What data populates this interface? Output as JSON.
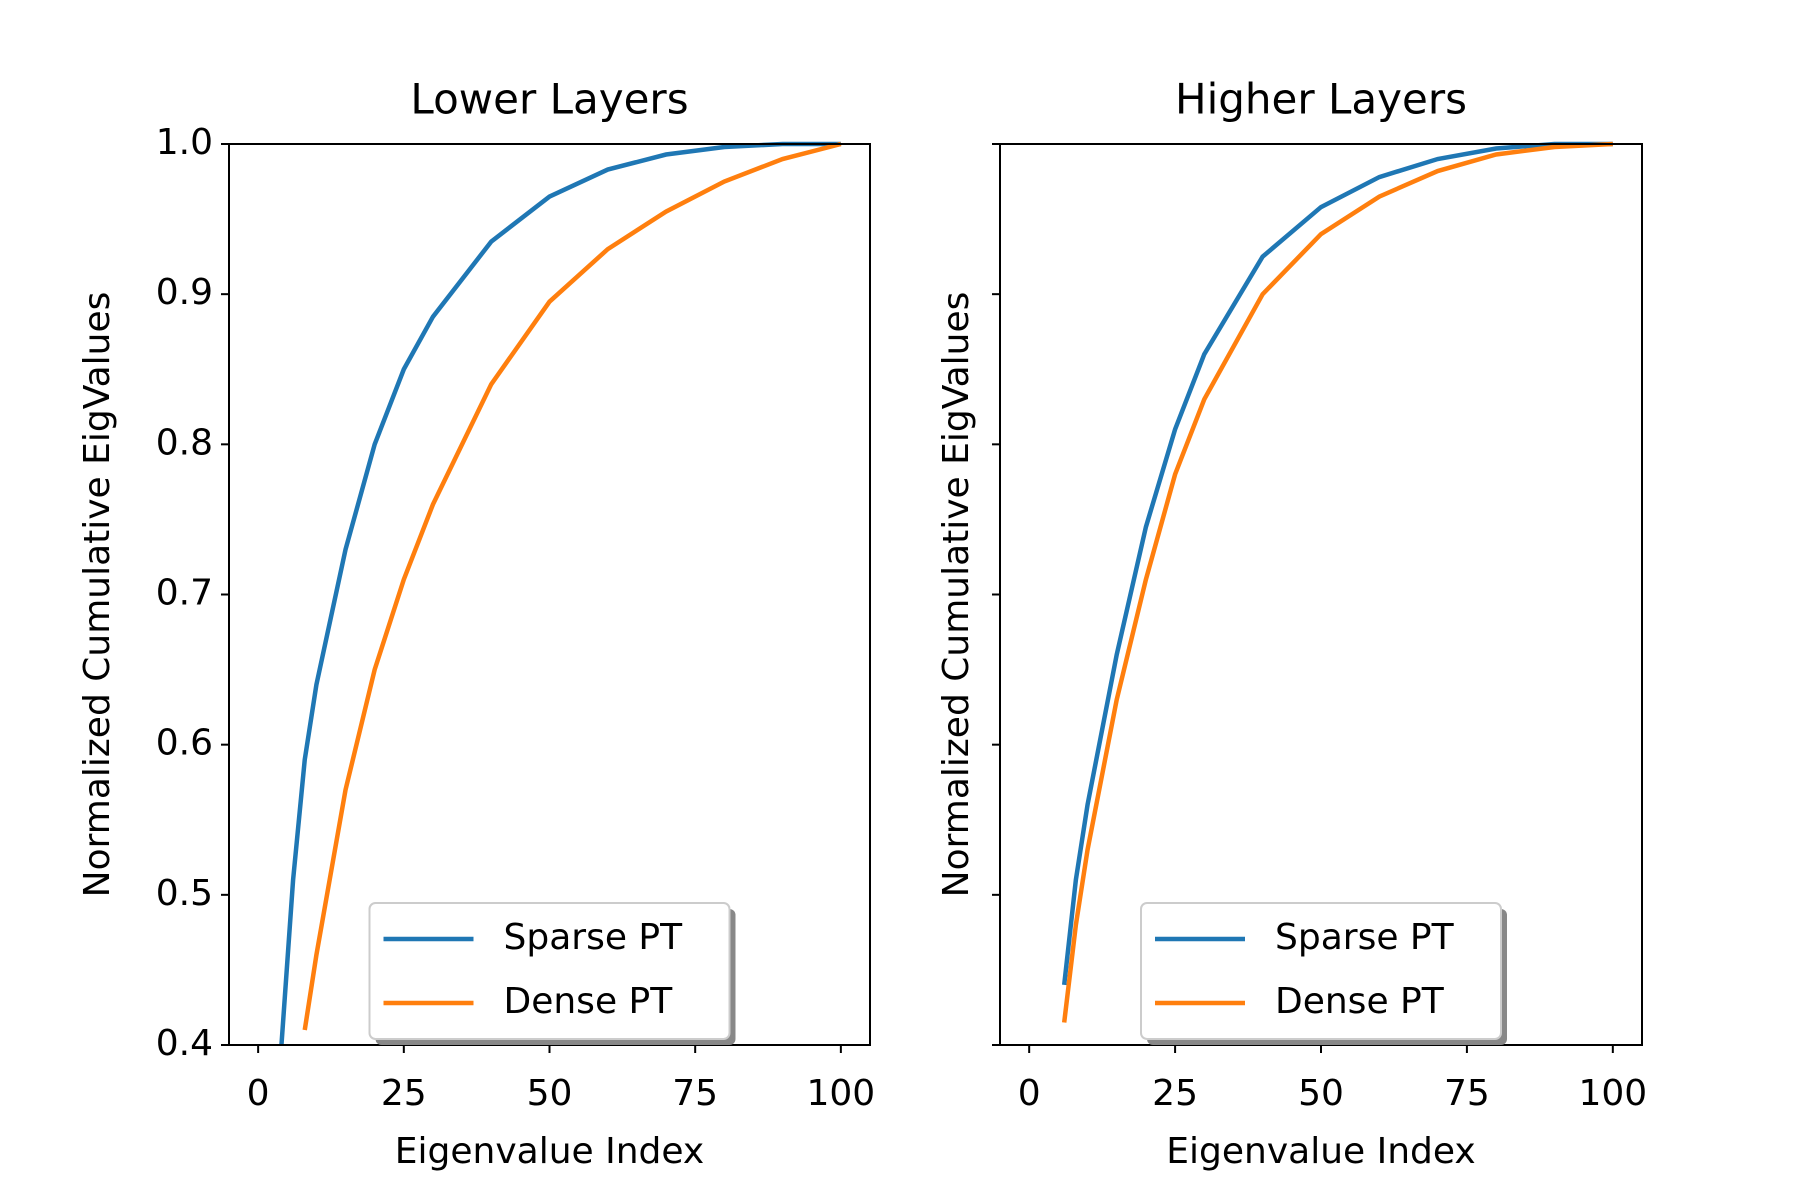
{
  "chart_data": [
    {
      "type": "line",
      "title": "Lower Layers",
      "x_label": "Eigenvalue Index",
      "y_label": "Normalized Cumulative EigValues",
      "x": [
        4,
        6,
        8,
        10,
        15,
        20,
        25,
        30,
        40,
        50,
        60,
        70,
        80,
        90,
        100
      ],
      "series": [
        {
          "name": "Sparse PT",
          "color": "#1f77b4",
          "values": [
            0.4,
            0.51,
            0.59,
            0.64,
            0.73,
            0.8,
            0.85,
            0.885,
            0.935,
            0.965,
            0.983,
            0.993,
            0.998,
            1.0,
            1.0
          ]
        },
        {
          "name": "Dense PT",
          "color": "#ff7f0e",
          "values": [
            null,
            null,
            0.41,
            0.46,
            0.57,
            0.65,
            0.71,
            0.76,
            0.84,
            0.895,
            0.93,
            0.955,
            0.975,
            0.99,
            1.0
          ]
        }
      ],
      "xlim": [
        -5,
        105
      ],
      "ylim": [
        0.4,
        1.0
      ],
      "xticks": [
        0,
        25,
        50,
        75,
        100
      ],
      "yticks": [
        0.4,
        0.5,
        0.6,
        0.7,
        0.8,
        0.9,
        {
          "value": 1.0,
          "label": "1.0"
        }
      ],
      "ytick_labels": true,
      "legend": "lower center"
    },
    {
      "type": "line",
      "title": "Higher Layers",
      "x_label": "Eigenvalue Index",
      "y_label": "Normalized Cumulative EigValues",
      "x": [
        4,
        6,
        8,
        10,
        15,
        20,
        25,
        30,
        40,
        50,
        60,
        70,
        80,
        90,
        100
      ],
      "series": [
        {
          "name": "Sparse PT",
          "color": "#1f77b4",
          "values": [
            null,
            0.44,
            0.51,
            0.56,
            0.66,
            0.745,
            0.81,
            0.86,
            0.925,
            0.958,
            0.978,
            0.99,
            0.997,
            1.0,
            1.0
          ]
        },
        {
          "name": "Dense PT",
          "color": "#ff7f0e",
          "values": [
            null,
            0.415,
            0.48,
            0.53,
            0.63,
            0.71,
            0.78,
            0.83,
            0.9,
            0.94,
            0.965,
            0.982,
            0.993,
            0.998,
            1.0
          ]
        }
      ],
      "xlim": [
        -5,
        105
      ],
      "ylim": [
        0.4,
        1.0
      ],
      "xticks": [
        0,
        25,
        50,
        75,
        100
      ],
      "yticks": [
        0.4,
        0.5,
        0.6,
        0.7,
        0.8,
        0.9,
        1.0
      ],
      "ytick_labels": false,
      "legend": "lower center"
    }
  ]
}
